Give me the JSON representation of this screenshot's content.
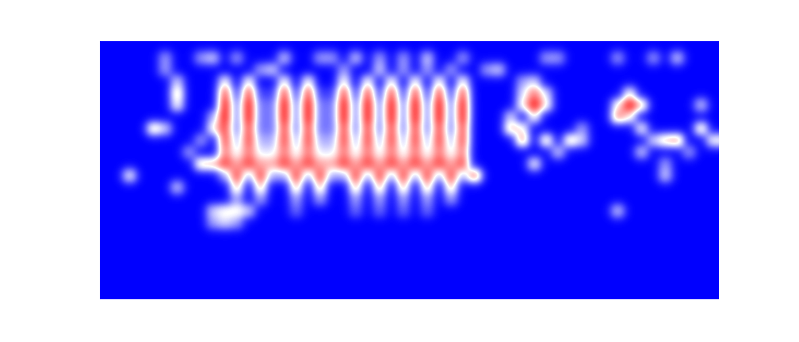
{
  "chart_data": {
    "type": "heatmap",
    "colors": [
      "#0000ff",
      "#ffffff",
      "#ff0000"
    ],
    "tick_labels": false,
    "cells": [
      [
        0,
        0,
        0,
        0,
        0,
        0,
        0,
        0,
        0,
        0,
        0,
        0,
        0,
        0,
        0,
        0,
        0,
        0,
        0,
        0,
        0,
        0,
        0,
        0,
        0,
        0,
        0,
        0,
        0,
        0,
        0,
        0,
        0,
        0,
        0,
        0,
        0,
        0,
        0,
        0,
        0,
        0,
        0,
        0,
        0,
        0,
        0,
        0,
        0,
        0,
        0,
        0
      ],
      [
        0,
        0,
        0,
        0,
        0,
        3,
        0,
        0,
        3,
        4,
        0,
        3,
        0,
        0,
        0,
        4,
        0,
        0,
        3,
        3,
        0,
        4,
        0,
        3,
        0,
        3,
        0,
        4,
        0,
        0,
        3,
        0,
        0,
        0,
        0,
        0,
        0,
        3,
        3,
        0,
        0,
        0,
        0,
        3,
        0,
        0,
        3,
        0,
        4,
        0,
        0,
        0
      ],
      [
        0,
        0,
        0,
        0,
        0,
        3,
        0,
        0,
        0,
        0,
        0,
        0,
        0,
        3,
        4,
        0,
        0,
        0,
        0,
        0,
        3,
        0,
        0,
        4,
        0,
        3,
        0,
        3,
        0,
        3,
        0,
        0,
        3,
        4,
        0,
        0,
        0,
        0,
        0,
        0,
        0,
        0,
        0,
        0,
        0,
        0,
        0,
        0,
        0,
        0,
        0,
        0
      ],
      [
        0,
        0,
        0,
        0,
        0,
        0,
        4,
        0,
        0,
        0,
        5,
        0,
        5,
        0,
        0,
        5,
        0,
        5,
        0,
        0,
        5,
        0,
        5,
        0,
        5,
        0,
        5,
        0,
        5,
        0,
        5,
        0,
        0,
        0,
        0,
        3,
        4,
        0,
        0,
        0,
        0,
        0,
        0,
        0,
        0,
        0,
        0,
        0,
        0,
        0,
        0,
        0
      ],
      [
        0,
        0,
        0,
        0,
        0,
        0,
        6,
        0,
        0,
        0,
        8,
        1,
        8,
        1,
        1,
        8,
        1,
        8,
        1,
        1,
        8,
        1,
        8,
        1,
        8,
        1,
        8,
        1,
        8,
        1,
        8,
        0,
        0,
        0,
        0,
        4,
        7,
        4,
        0,
        0,
        0,
        0,
        0,
        0,
        5,
        0,
        0,
        0,
        0,
        0,
        0,
        0
      ],
      [
        0,
        0,
        0,
        0,
        0,
        0,
        5,
        0,
        0,
        0,
        9,
        2,
        9,
        2,
        2,
        9,
        2,
        9,
        2,
        2,
        9,
        2,
        9,
        2,
        9,
        2,
        9,
        2,
        9,
        2,
        9,
        0,
        0,
        0,
        0,
        5,
        9,
        5,
        0,
        0,
        0,
        0,
        0,
        5,
        9,
        6,
        0,
        0,
        0,
        0,
        4,
        0
      ],
      [
        0,
        0,
        0,
        0,
        0,
        0,
        0,
        0,
        0,
        3,
        9,
        2,
        9,
        2,
        2,
        9,
        2,
        9,
        2,
        2,
        9,
        2,
        9,
        2,
        9,
        2,
        9,
        2,
        9,
        2,
        9,
        0,
        0,
        0,
        4,
        0,
        5,
        0,
        0,
        0,
        0,
        0,
        0,
        7,
        5,
        0,
        0,
        0,
        0,
        0,
        0,
        0
      ],
      [
        0,
        0,
        0,
        0,
        6,
        4,
        0,
        0,
        0,
        5,
        8,
        2,
        8,
        2,
        2,
        8,
        2,
        8,
        2,
        2,
        8,
        2,
        8,
        2,
        8,
        2,
        8,
        2,
        8,
        2,
        8,
        0,
        0,
        0,
        6,
        5,
        0,
        0,
        0,
        0,
        3,
        0,
        0,
        0,
        0,
        5,
        0,
        0,
        0,
        0,
        6,
        0
      ],
      [
        0,
        0,
        0,
        0,
        0,
        0,
        0,
        0,
        3,
        0,
        8,
        3,
        8,
        3,
        3,
        8,
        3,
        8,
        3,
        3,
        8,
        3,
        8,
        3,
        8,
        3,
        8,
        3,
        8,
        3,
        8,
        0,
        0,
        0,
        0,
        7,
        0,
        6,
        0,
        6,
        4,
        0,
        0,
        0,
        0,
        0,
        4,
        6,
        7,
        0,
        0,
        5
      ],
      [
        0,
        0,
        0,
        0,
        0,
        0,
        0,
        3,
        0,
        0,
        7,
        4,
        7,
        4,
        4,
        7,
        4,
        7,
        4,
        4,
        7,
        4,
        7,
        4,
        7,
        4,
        7,
        4,
        7,
        4,
        7,
        0,
        0,
        0,
        0,
        0,
        0,
        0,
        4,
        0,
        0,
        0,
        0,
        0,
        0,
        4,
        0,
        0,
        0,
        3,
        0,
        0
      ],
      [
        0,
        0,
        0,
        0,
        0,
        0,
        0,
        0,
        6,
        6,
        8,
        6,
        8,
        6,
        6,
        8,
        6,
        8,
        6,
        6,
        8,
        6,
        8,
        6,
        8,
        6,
        8,
        6,
        8,
        6,
        8,
        0,
        0,
        0,
        0,
        0,
        5,
        0,
        0,
        0,
        0,
        0,
        0,
        0,
        0,
        0,
        0,
        3,
        0,
        0,
        0,
        0
      ],
      [
        0,
        0,
        5,
        0,
        0,
        0,
        0,
        0,
        0,
        0,
        3,
        8,
        3,
        8,
        3,
        3,
        8,
        3,
        8,
        3,
        3,
        8,
        3,
        8,
        3,
        8,
        3,
        8,
        3,
        8,
        3,
        8,
        0,
        0,
        0,
        0,
        0,
        0,
        0,
        0,
        0,
        0,
        0,
        0,
        0,
        0,
        0,
        4,
        0,
        0,
        0,
        0
      ],
      [
        0,
        0,
        0,
        0,
        0,
        0,
        4,
        0,
        0,
        0,
        0,
        6,
        0,
        6,
        0,
        0,
        6,
        0,
        6,
        0,
        0,
        6,
        0,
        6,
        0,
        6,
        0,
        6,
        0,
        6,
        0,
        0,
        0,
        0,
        0,
        0,
        0,
        0,
        0,
        0,
        0,
        0,
        0,
        0,
        0,
        0,
        0,
        0,
        0,
        0,
        0,
        0
      ],
      [
        0,
        0,
        0,
        0,
        0,
        0,
        0,
        0,
        0,
        0,
        0,
        3,
        0,
        3,
        0,
        0,
        3,
        0,
        3,
        0,
        0,
        3,
        0,
        3,
        0,
        3,
        0,
        3,
        0,
        3,
        0,
        0,
        0,
        0,
        0,
        0,
        0,
        0,
        0,
        0,
        0,
        0,
        0,
        0,
        0,
        0,
        0,
        0,
        0,
        0,
        0,
        0
      ],
      [
        0,
        0,
        0,
        0,
        0,
        0,
        0,
        0,
        0,
        4,
        5,
        5,
        4,
        0,
        0,
        0,
        2,
        0,
        0,
        0,
        0,
        2,
        0,
        2,
        0,
        2,
        0,
        2,
        0,
        0,
        0,
        0,
        0,
        0,
        0,
        0,
        0,
        0,
        0,
        0,
        0,
        0,
        0,
        4,
        0,
        0,
        0,
        0,
        0,
        0,
        0,
        0
      ],
      [
        0,
        0,
        0,
        0,
        0,
        0,
        0,
        0,
        0,
        3,
        4,
        3,
        0,
        0,
        0,
        0,
        0,
        0,
        0,
        0,
        0,
        0,
        0,
        0,
        0,
        0,
        0,
        0,
        0,
        0,
        0,
        0,
        0,
        0,
        0,
        0,
        0,
        0,
        0,
        0,
        0,
        0,
        0,
        0,
        0,
        0,
        0,
        0,
        0,
        0,
        0,
        0
      ],
      [
        0,
        0,
        0,
        0,
        0,
        0,
        0,
        0,
        0,
        0,
        0,
        0,
        0,
        0,
        0,
        0,
        0,
        0,
        0,
        0,
        0,
        0,
        0,
        0,
        0,
        0,
        0,
        0,
        0,
        0,
        0,
        0,
        0,
        0,
        0,
        0,
        0,
        0,
        0,
        0,
        0,
        0,
        0,
        0,
        0,
        0,
        0,
        0,
        0,
        0,
        0,
        0
      ],
      [
        0,
        0,
        0,
        0,
        0,
        0,
        0,
        0,
        0,
        0,
        0,
        0,
        0,
        0,
        0,
        0,
        0,
        0,
        0,
        0,
        0,
        0,
        0,
        0,
        0,
        0,
        0,
        0,
        0,
        0,
        0,
        0,
        0,
        0,
        0,
        0,
        0,
        0,
        0,
        0,
        0,
        0,
        0,
        0,
        0,
        0,
        0,
        0,
        0,
        0,
        0,
        0
      ],
      [
        0,
        0,
        0,
        0,
        0,
        0,
        0,
        0,
        0,
        0,
        0,
        0,
        0,
        0,
        0,
        0,
        0,
        0,
        0,
        0,
        0,
        0,
        0,
        0,
        0,
        0,
        0,
        0,
        0,
        0,
        0,
        0,
        0,
        0,
        0,
        0,
        0,
        0,
        0,
        0,
        0,
        0,
        0,
        0,
        0,
        0,
        0,
        0,
        0,
        0,
        0,
        0
      ],
      [
        0,
        0,
        0,
        0,
        0,
        0,
        0,
        0,
        0,
        0,
        0,
        0,
        0,
        0,
        0,
        0,
        0,
        0,
        0,
        0,
        0,
        0,
        0,
        0,
        0,
        0,
        0,
        0,
        0,
        0,
        0,
        0,
        0,
        0,
        0,
        0,
        0,
        0,
        0,
        0,
        0,
        0,
        0,
        0,
        0,
        0,
        0,
        0,
        0,
        0,
        0,
        0
      ],
      [
        0,
        0,
        0,
        0,
        0,
        0,
        0,
        0,
        0,
        0,
        0,
        0,
        0,
        0,
        0,
        0,
        0,
        0,
        0,
        0,
        0,
        0,
        0,
        0,
        0,
        0,
        0,
        0,
        0,
        0,
        0,
        0,
        0,
        0,
        0,
        0,
        0,
        0,
        0,
        0,
        0,
        0,
        0,
        0,
        0,
        0,
        0,
        0,
        0,
        0,
        0,
        0
      ],
      [
        0,
        0,
        0,
        0,
        0,
        0,
        0,
        0,
        0,
        0,
        0,
        0,
        0,
        0,
        0,
        0,
        0,
        0,
        0,
        0,
        0,
        0,
        0,
        0,
        0,
        0,
        0,
        0,
        0,
        0,
        0,
        0,
        0,
        0,
        0,
        0,
        0,
        0,
        0,
        0,
        0,
        0,
        0,
        0,
        0,
        0,
        0,
        0,
        0,
        0,
        0,
        0
      ]
    ]
  }
}
